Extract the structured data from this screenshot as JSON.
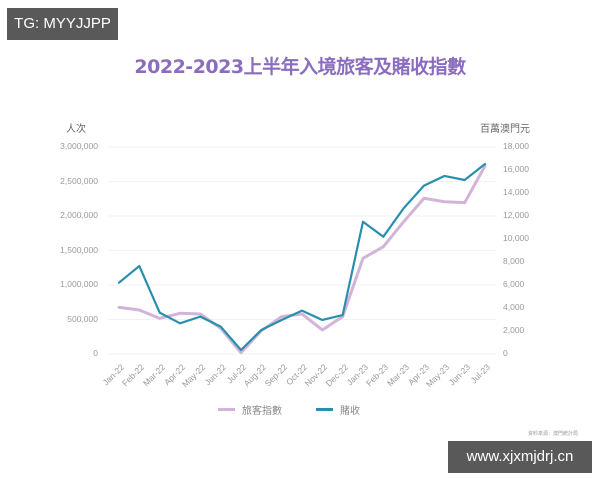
{
  "watermarks": {
    "top": "TG: MYYJJPP",
    "bottom": "www.xjxmjdrj.cn"
  },
  "title": "2022-2023上半年入境旅客及賭收指數",
  "source_note": "資料來源：澳門統計局",
  "colors": {
    "title": "#8a6dbd",
    "visitors": "#d2b4d8",
    "gaming": "#2a8fae",
    "grid": "#f2f2f2"
  },
  "chart_data": {
    "type": "line",
    "title": "2022-2023上半年入境旅客及賭收指數",
    "xlabel": "",
    "ylabel_left": "人次",
    "ylabel_right": "百萬澳門元",
    "categories": [
      "Jan-22",
      "Feb-22",
      "Mar-22",
      "Apr-22",
      "May-22",
      "Jun-22",
      "Jul-22",
      "Aug-22",
      "Sep-22",
      "Oct-22",
      "Nov-22",
      "Dec-22",
      "Jan-23",
      "Feb-23",
      "Mar-23",
      "Apr-23",
      "May-23",
      "Jun-23",
      "Jul-23"
    ],
    "left_axis": {
      "ylim": [
        0,
        3000000
      ],
      "ticks": [
        "0",
        "500,000",
        "1,000,000",
        "1,500,000",
        "2,000,000",
        "2,500,000",
        "3,000,000"
      ]
    },
    "right_axis": {
      "ylim": [
        0,
        18000
      ],
      "ticks": [
        "0",
        "2,000",
        "4,000",
        "6,000",
        "8,000",
        "10,000",
        "12,000",
        "14,000",
        "16,000",
        "18,000"
      ]
    },
    "grid": true,
    "legend_position": "bottom",
    "series": [
      {
        "name": "旅客指數",
        "axis": "left",
        "color": "#d2b4d8",
        "values": [
          676000,
          638000,
          517000,
          590000,
          580000,
          372000,
          20000,
          338000,
          541000,
          580000,
          348000,
          541000,
          1387000,
          1555000,
          1917000,
          2257000,
          2207000,
          2193000,
          2725000
        ]
      },
      {
        "name": "賭收",
        "axis": "right",
        "color": "#2a8fae",
        "values": [
          6200,
          7650,
          3600,
          2670,
          3250,
          2380,
          350,
          2090,
          2960,
          3770,
          2960,
          3390,
          11500,
          10200,
          12670,
          14640,
          15480,
          15130,
          16520
        ]
      }
    ]
  }
}
